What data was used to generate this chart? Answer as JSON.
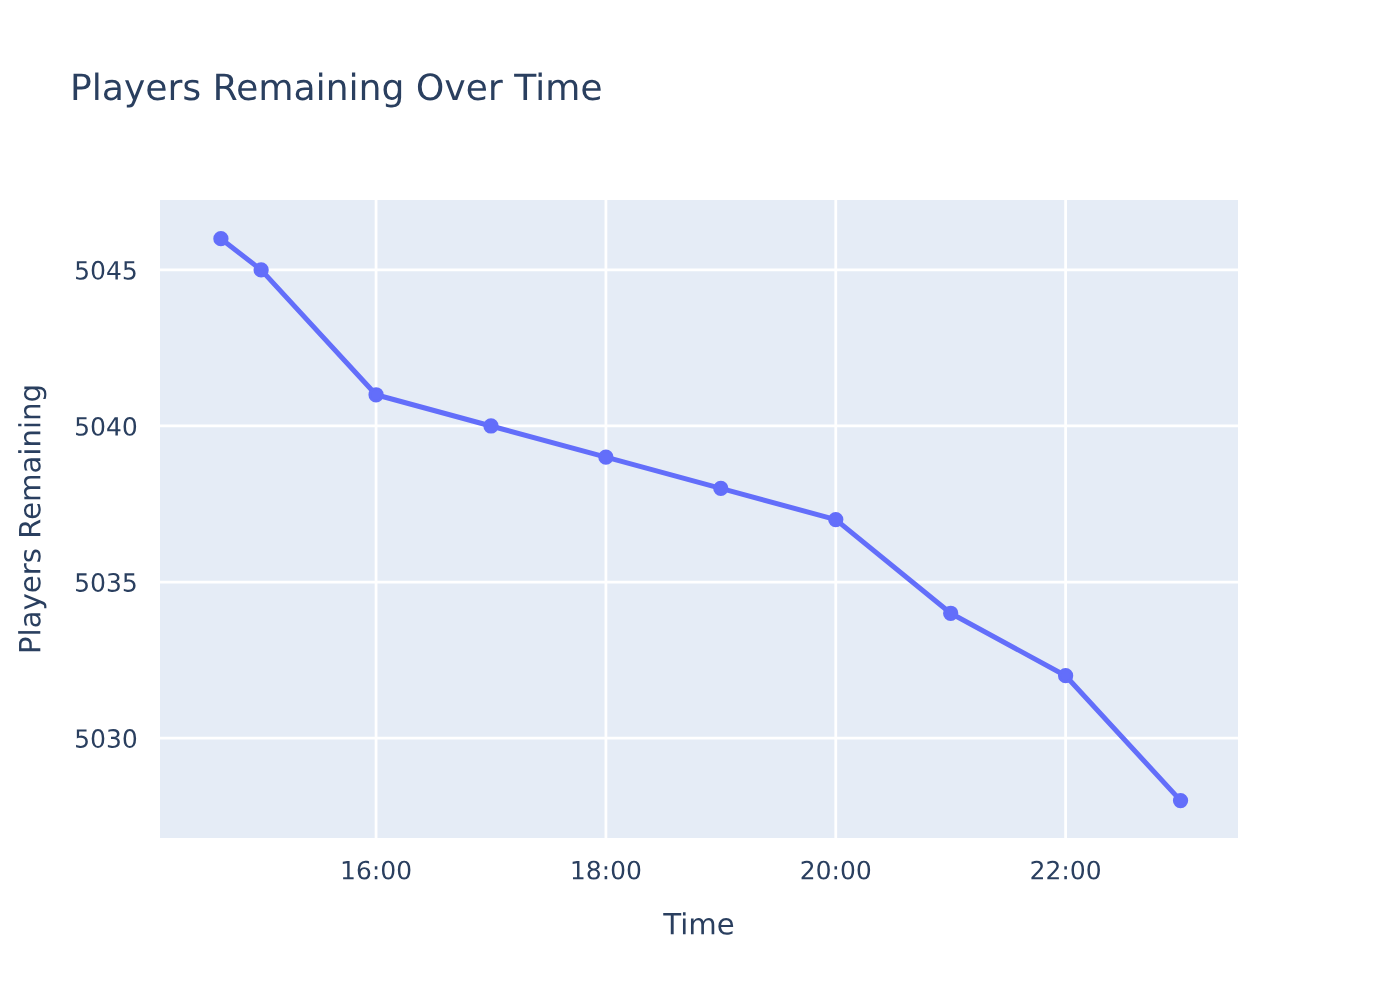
{
  "chart_data": {
    "type": "line",
    "title": "Players Remaining Over Time",
    "xlabel": "Time",
    "ylabel": "Players Remaining",
    "x": [
      14.65,
      15,
      16,
      17,
      18,
      19,
      20,
      21,
      22,
      23
    ],
    "series": [
      {
        "color": "#636efa",
        "values": [
          5046,
          5045,
          5041,
          5040,
          5039,
          5038,
          5037,
          5034,
          5032,
          5028
        ]
      }
    ],
    "xlim": [
      14.12,
      23.5
    ],
    "xticks": [
      {
        "value": 16,
        "label": "16:00"
      },
      {
        "value": 18,
        "label": "18:00"
      },
      {
        "value": 20,
        "label": "20:00"
      },
      {
        "value": 22,
        "label": "22:00"
      }
    ],
    "ylim": [
      5026.8,
      5047.24
    ],
    "yticks": [
      5030,
      5035,
      5040,
      5045
    ],
    "grid": true,
    "marker": "circle",
    "line_style": "solid"
  }
}
